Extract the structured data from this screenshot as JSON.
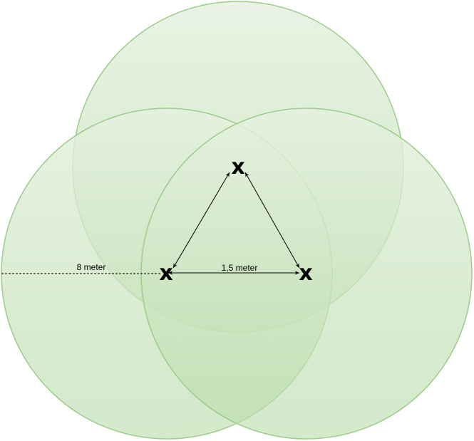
{
  "diagram": {
    "nodes": [
      {
        "id": "top",
        "mark": "x"
      },
      {
        "id": "left",
        "mark": "x"
      },
      {
        "id": "right",
        "mark": "x"
      }
    ],
    "edges": [
      {
        "from": "left",
        "to": "top",
        "arrows": "both"
      },
      {
        "from": "top",
        "to": "right",
        "arrows": "both"
      },
      {
        "from": "left",
        "to": "right",
        "arrows": "both",
        "label": "1,5 meter"
      }
    ],
    "radius_label": "8 meter",
    "colors": {
      "circle_fill_light": "#e6f1e0",
      "circle_fill_dark": "#b7dba8",
      "circle_stroke": "#9ccc8a",
      "line": "#000000"
    }
  }
}
